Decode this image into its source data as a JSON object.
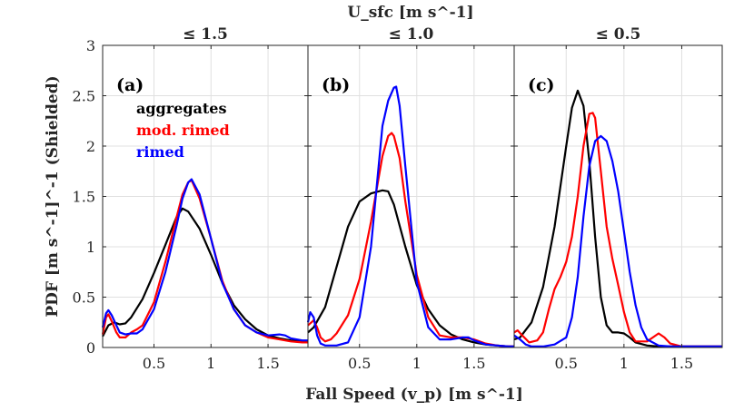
{
  "chart_data": {
    "type": "line",
    "super_title": "U_sfc [m s^-1]",
    "ylabel": "PDF [m s^-1]^-1 (Shielded)",
    "xlabel": "Fall Speed (v_p) [m s^-1]",
    "xlim": [
      0.05,
      1.85
    ],
    "ylim": [
      0,
      3
    ],
    "xticks": [
      0.5,
      1,
      1.5
    ],
    "xtick_labels": [
      "0.5",
      "1",
      "1.5"
    ],
    "yticks": [
      0,
      0.5,
      1,
      1.5,
      2,
      2.5,
      3
    ],
    "ytick_labels": [
      "0",
      "0.5",
      "1",
      "1.5",
      "2",
      "2.5",
      "3"
    ],
    "grid": true,
    "legend": {
      "position": "top-left of panel (a)",
      "entries": [
        {
          "name": "aggregates",
          "color": "#000000"
        },
        {
          "name": "mod. rimed",
          "color": "#ff0000"
        },
        {
          "name": "rimed",
          "color": "#0000ff"
        }
      ]
    },
    "panels": [
      {
        "letter": "(a)",
        "title": "≤ 1.5",
        "series": [
          {
            "name": "aggregates",
            "color": "#000000",
            "x": [
              0.05,
              0.1,
              0.15,
              0.2,
              0.25,
              0.3,
              0.4,
              0.5,
              0.6,
              0.7,
              0.75,
              0.8,
              0.9,
              1.0,
              1.1,
              1.2,
              1.3,
              1.4,
              1.5,
              1.6,
              1.7,
              1.8,
              1.85
            ],
            "y": [
              0.11,
              0.22,
              0.25,
              0.23,
              0.24,
              0.3,
              0.48,
              0.74,
              1.02,
              1.3,
              1.38,
              1.35,
              1.18,
              0.92,
              0.64,
              0.42,
              0.28,
              0.18,
              0.12,
              0.09,
              0.07,
              0.06,
              0.06
            ]
          },
          {
            "name": "mod. rimed",
            "color": "#ff0000",
            "x": [
              0.05,
              0.08,
              0.1,
              0.13,
              0.17,
              0.2,
              0.25,
              0.3,
              0.35,
              0.4,
              0.5,
              0.6,
              0.7,
              0.75,
              0.8,
              0.83,
              0.9,
              1.0,
              1.1,
              1.2,
              1.3,
              1.4,
              1.5,
              1.6,
              1.7,
              1.8,
              1.85
            ],
            "y": [
              0.13,
              0.3,
              0.33,
              0.26,
              0.15,
              0.1,
              0.1,
              0.15,
              0.18,
              0.22,
              0.45,
              0.85,
              1.3,
              1.52,
              1.64,
              1.66,
              1.48,
              1.08,
              0.66,
              0.38,
              0.22,
              0.15,
              0.1,
              0.08,
              0.06,
              0.05,
              0.05
            ]
          },
          {
            "name": "rimed",
            "color": "#0000ff",
            "x": [
              0.05,
              0.08,
              0.1,
              0.13,
              0.17,
              0.2,
              0.25,
              0.3,
              0.35,
              0.4,
              0.5,
              0.6,
              0.7,
              0.75,
              0.8,
              0.83,
              0.9,
              1.0,
              1.1,
              1.2,
              1.3,
              1.4,
              1.5,
              1.6,
              1.65,
              1.7,
              1.8,
              1.85
            ],
            "y": [
              0.2,
              0.34,
              0.37,
              0.32,
              0.22,
              0.15,
              0.13,
              0.14,
              0.14,
              0.18,
              0.38,
              0.75,
              1.22,
              1.48,
              1.64,
              1.67,
              1.52,
              1.08,
              0.64,
              0.38,
              0.22,
              0.15,
              0.12,
              0.13,
              0.12,
              0.09,
              0.07,
              0.07
            ]
          }
        ]
      },
      {
        "letter": "(b)",
        "title": "≤ 1.0",
        "series": [
          {
            "name": "aggregates",
            "color": "#000000",
            "x": [
              0.05,
              0.1,
              0.2,
              0.3,
              0.4,
              0.5,
              0.6,
              0.7,
              0.75,
              0.8,
              0.9,
              1.0,
              1.1,
              1.2,
              1.3,
              1.4,
              1.5,
              1.6,
              1.7,
              1.8,
              1.85
            ],
            "y": [
              0.15,
              0.2,
              0.4,
              0.8,
              1.2,
              1.45,
              1.53,
              1.56,
              1.55,
              1.42,
              1.0,
              0.62,
              0.38,
              0.22,
              0.13,
              0.08,
              0.05,
              0.03,
              0.02,
              0.01,
              0.01
            ]
          },
          {
            "name": "mod. rimed",
            "color": "#ff0000",
            "x": [
              0.05,
              0.08,
              0.1,
              0.13,
              0.16,
              0.2,
              0.25,
              0.3,
              0.4,
              0.5,
              0.6,
              0.7,
              0.75,
              0.78,
              0.8,
              0.85,
              0.9,
              1.0,
              1.1,
              1.2,
              1.3,
              1.4,
              1.5,
              1.6,
              1.7,
              1.8,
              1.85
            ],
            "y": [
              0.22,
              0.25,
              0.27,
              0.2,
              0.1,
              0.06,
              0.08,
              0.14,
              0.32,
              0.68,
              1.25,
              1.9,
              2.1,
              2.13,
              2.1,
              1.88,
              1.45,
              0.72,
              0.3,
              0.12,
              0.1,
              0.1,
              0.08,
              0.04,
              0.02,
              0.01,
              0.01
            ]
          },
          {
            "name": "rimed",
            "color": "#0000ff",
            "x": [
              0.05,
              0.07,
              0.1,
              0.13,
              0.16,
              0.2,
              0.3,
              0.4,
              0.5,
              0.6,
              0.65,
              0.7,
              0.75,
              0.8,
              0.82,
              0.85,
              0.9,
              1.0,
              1.1,
              1.2,
              1.3,
              1.4,
              1.45,
              1.5,
              1.6,
              1.7,
              1.8,
              1.85
            ],
            "y": [
              0.25,
              0.35,
              0.3,
              0.12,
              0.04,
              0.02,
              0.02,
              0.05,
              0.3,
              1.0,
              1.6,
              2.2,
              2.45,
              2.58,
              2.59,
              2.4,
              1.8,
              0.65,
              0.2,
              0.08,
              0.08,
              0.1,
              0.1,
              0.07,
              0.03,
              0.02,
              0.01,
              0.01
            ]
          }
        ]
      },
      {
        "letter": "(c)",
        "title": "≤ 0.5",
        "series": [
          {
            "name": "aggregates",
            "color": "#000000",
            "x": [
              0.05,
              0.1,
              0.2,
              0.3,
              0.4,
              0.5,
              0.55,
              0.6,
              0.65,
              0.7,
              0.75,
              0.8,
              0.85,
              0.9,
              0.95,
              1.0,
              1.05,
              1.1,
              1.2,
              1.3,
              1.4,
              1.5,
              1.6,
              1.7,
              1.8,
              1.85
            ],
            "y": [
              0.08,
              0.1,
              0.25,
              0.6,
              1.2,
              2.0,
              2.38,
              2.55,
              2.4,
              1.85,
              1.1,
              0.5,
              0.22,
              0.15,
              0.15,
              0.14,
              0.1,
              0.05,
              0.02,
              0.01,
              0.01,
              0.01,
              0.01,
              0.01,
              0.01,
              0.01
            ]
          },
          {
            "name": "mod. rimed",
            "color": "#ff0000",
            "x": [
              0.05,
              0.08,
              0.12,
              0.18,
              0.25,
              0.3,
              0.35,
              0.4,
              0.45,
              0.5,
              0.55,
              0.6,
              0.65,
              0.7,
              0.73,
              0.75,
              0.8,
              0.85,
              0.9,
              0.95,
              1.0,
              1.05,
              1.1,
              1.2,
              1.25,
              1.3,
              1.35,
              1.4,
              1.5,
              1.6,
              1.7,
              1.8,
              1.85
            ],
            "y": [
              0.15,
              0.17,
              0.12,
              0.05,
              0.07,
              0.15,
              0.38,
              0.58,
              0.7,
              0.85,
              1.1,
              1.5,
              2.0,
              2.32,
              2.33,
              2.28,
              1.75,
              1.2,
              0.88,
              0.62,
              0.35,
              0.15,
              0.06,
              0.06,
              0.1,
              0.14,
              0.1,
              0.04,
              0.01,
              0.01,
              0.01,
              0.01,
              0.01
            ]
          },
          {
            "name": "rimed",
            "color": "#0000ff",
            "x": [
              0.05,
              0.1,
              0.15,
              0.2,
              0.3,
              0.4,
              0.5,
              0.55,
              0.6,
              0.65,
              0.7,
              0.75,
              0.8,
              0.85,
              0.9,
              0.95,
              1.0,
              1.05,
              1.1,
              1.15,
              1.2,
              1.3,
              1.4,
              1.5,
              1.6,
              1.7,
              1.8,
              1.85
            ],
            "y": [
              0.12,
              0.08,
              0.03,
              0.01,
              0.01,
              0.03,
              0.1,
              0.3,
              0.7,
              1.3,
              1.8,
              2.05,
              2.1,
              2.05,
              1.85,
              1.55,
              1.15,
              0.75,
              0.42,
              0.2,
              0.08,
              0.02,
              0.01,
              0.01,
              0.01,
              0.01,
              0.01,
              0.01
            ]
          }
        ]
      }
    ]
  }
}
